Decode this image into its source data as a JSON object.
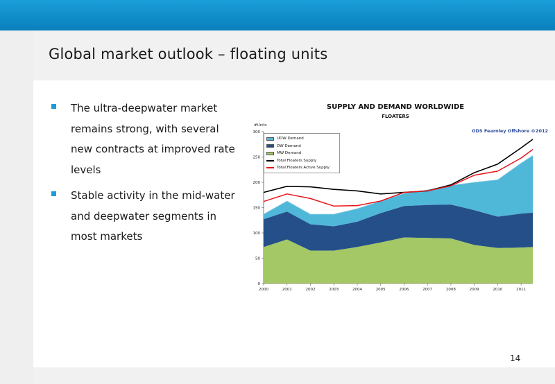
{
  "slide": {
    "title": "Global market outlook – floating units",
    "page_number": "14",
    "bullets": [
      {
        "text": "The ultra-deepwater market remains strong, with several new contracts at improved rate levels"
      },
      {
        "text": "Stable activity in the mid-water and deepwater segments in most markets"
      }
    ],
    "colors": {
      "accent": "#1a9ed9",
      "udw": "#4fb8d9",
      "dw": "#244f89",
      "mw": "#a3c865",
      "total_supply": "#000000",
      "active_supply": "#e8141b"
    }
  },
  "chart_data": {
    "type": "area",
    "title": "SUPPLY AND DEMAND WORLDWIDE",
    "subtitle": "FLOATERS",
    "ylabel": "#Units",
    "watermark": "ODS Fearnley Offshore ©2012",
    "ylim": [
      0,
      300
    ],
    "yticks": [
      "0",
      "50",
      "100",
      "150",
      "200",
      "250",
      "300"
    ],
    "x": [
      2000,
      2001,
      2002,
      2003,
      2004,
      2005,
      2006,
      2007,
      2008,
      2009,
      2010,
      2011,
      2011.5
    ],
    "xticks": [
      "2000",
      "2001",
      "2002",
      "2003",
      "2004",
      "2005",
      "2006",
      "2007",
      "2008",
      "2009",
      "2010",
      "2011"
    ],
    "legend": [
      {
        "label": "UDW Demand",
        "kind": "area",
        "color": "#4fb8d9"
      },
      {
        "label": "DW Demand",
        "kind": "area",
        "color": "#244f89"
      },
      {
        "label": "MW Demand",
        "kind": "area",
        "color": "#a3c865"
      },
      {
        "label": "Total Floaters Supply",
        "kind": "line",
        "color": "#000000"
      },
      {
        "label": "Total Floaters Active Supply",
        "kind": "line",
        "color": "#e8141b"
      }
    ],
    "series": [
      {
        "name": "MW Demand",
        "values": [
          72,
          87,
          65,
          65,
          72,
          81,
          91,
          90,
          89,
          76,
          70,
          71,
          72
        ]
      },
      {
        "name": "DW Demand",
        "values": [
          55,
          55,
          52,
          48,
          50,
          58,
          62,
          65,
          67,
          69,
          62,
          67,
          68
        ]
      },
      {
        "name": "UDW Demand",
        "values": [
          10,
          21,
          20,
          24,
          26,
          24,
          25,
          30,
          38,
          55,
          73,
          100,
          113
        ]
      },
      {
        "name": "Total Floaters Supply",
        "values": [
          180,
          192,
          191,
          186,
          183,
          177,
          180,
          183,
          195,
          219,
          236,
          268,
          285
        ]
      },
      {
        "name": "Total Floaters Active Supply",
        "values": [
          162,
          177,
          168,
          153,
          154,
          163,
          180,
          183,
          193,
          214,
          222,
          248,
          265
        ]
      }
    ]
  }
}
